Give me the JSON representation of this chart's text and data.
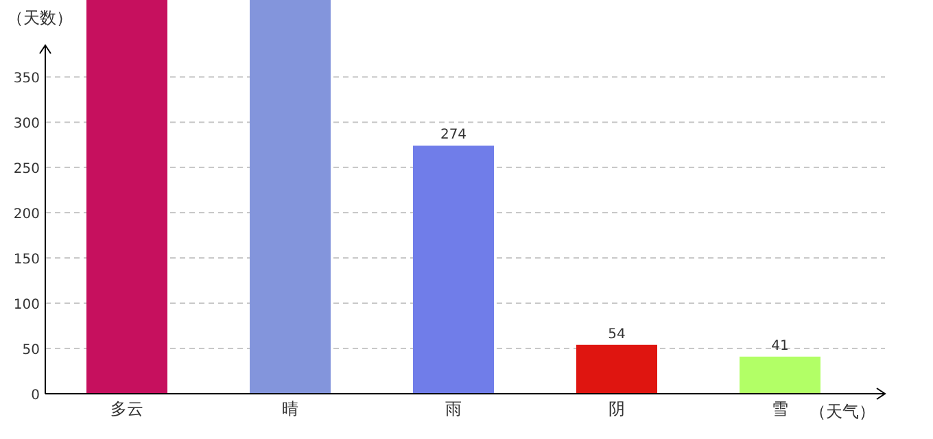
{
  "chart_data": {
    "type": "bar",
    "xlabel": "（天气）",
    "ylabel": "（天数）",
    "categories": [
      "多云",
      "晴",
      "雨",
      "阴",
      "雪"
    ],
    "values": [
      435,
      435,
      274,
      54,
      41
    ],
    "value_labels": [
      null,
      null,
      "274",
      "54",
      "41"
    ],
    "colors": [
      "#c6105e",
      "#8395dc",
      "#707de9",
      "#df1510",
      "#b2ff66"
    ],
    "ylim": [
      0,
      435
    ],
    "yticks": [
      0,
      50,
      100,
      150,
      200,
      250,
      300,
      350
    ],
    "grid": "y"
  }
}
